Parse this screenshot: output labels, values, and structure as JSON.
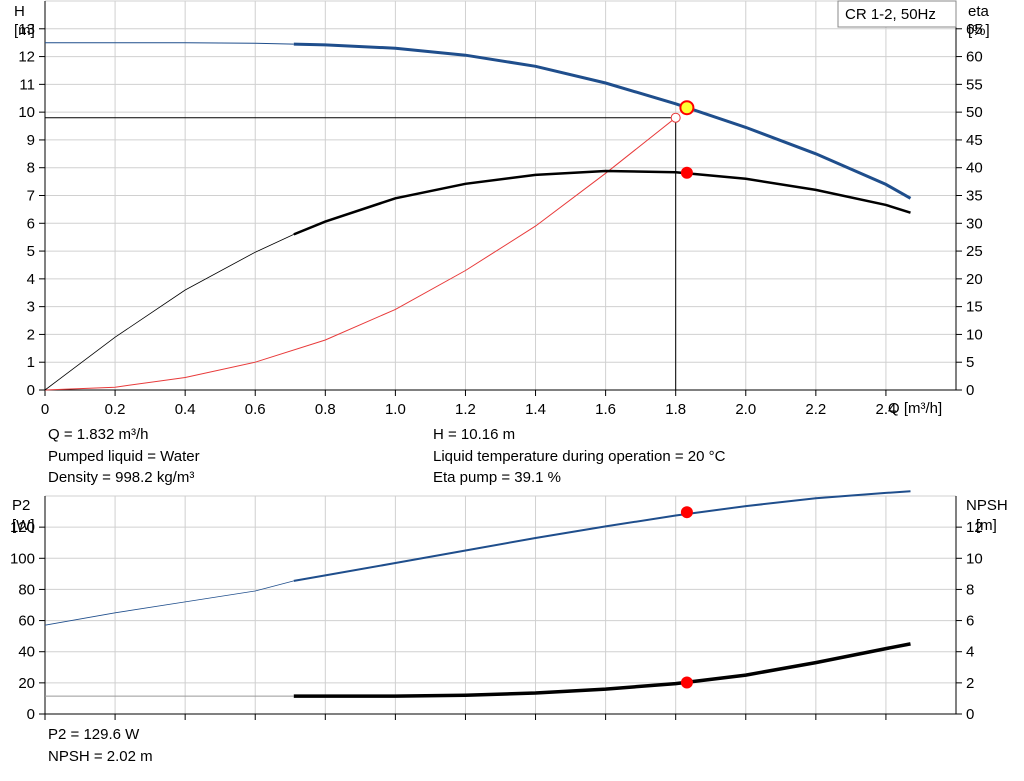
{
  "chart_data": [
    {
      "type": "line",
      "title": "CR 1-2, 50Hz",
      "x": {
        "label": "Q [m³/h]",
        "range": [
          0,
          2.6
        ],
        "ticks": [
          0,
          0.2,
          0.4,
          0.6,
          0.8,
          1.0,
          1.2,
          1.4,
          1.6,
          1.8,
          2.0,
          2.2,
          2.4
        ],
        "tick_labels": [
          "0",
          "0.2",
          "0.4",
          "0.6",
          "0.8",
          "1.0",
          "1.2",
          "1.4",
          "1.6",
          "1.8",
          "2.0",
          "2.2",
          "2.4"
        ]
      },
      "y_left": {
        "label_line1": "H",
        "label_line2": "[m]",
        "range": [
          0,
          14
        ],
        "ticks": [
          0,
          1,
          2,
          3,
          4,
          5,
          6,
          7,
          8,
          9,
          10,
          11,
          12,
          13
        ]
      },
      "y_right": {
        "label_line1": "eta",
        "label_line2": "[%]",
        "range": [
          0,
          70
        ],
        "ticks": [
          0,
          5,
          10,
          15,
          20,
          25,
          30,
          35,
          40,
          45,
          50,
          55,
          60,
          65
        ]
      },
      "grid": true,
      "series": [
        {
          "axis": "left",
          "color": "#1f4e8c",
          "x": [
            0,
            0.2,
            0.4,
            0.6,
            0.71,
            0.8,
            1.0,
            1.2,
            1.4,
            1.6,
            1.8,
            2.0,
            2.2,
            2.4,
            2.47
          ],
          "y": [
            12.5,
            12.5,
            12.5,
            12.48,
            12.45,
            12.42,
            12.3,
            12.05,
            11.65,
            11.05,
            10.3,
            9.45,
            8.5,
            7.4,
            6.9
          ]
        },
        {
          "axis": "right",
          "color": "#000000",
          "x": [
            0,
            0.2,
            0.4,
            0.6,
            0.71,
            0.8,
            1.0,
            1.2,
            1.4,
            1.6,
            1.8,
            2.0,
            2.2,
            2.4,
            2.47
          ],
          "y": [
            0,
            9.5,
            18,
            24.8,
            28.0,
            30.3,
            34.5,
            37.1,
            38.7,
            39.4,
            39.2,
            38.0,
            36.0,
            33.3,
            31.9
          ]
        },
        {
          "axis": "left",
          "color": "#e83a3a",
          "x": [
            0,
            0.2,
            0.4,
            0.6,
            0.8,
            1.0,
            1.2,
            1.4,
            1.6,
            1.8
          ],
          "y": [
            0,
            0.1,
            0.45,
            1.0,
            1.8,
            2.9,
            4.3,
            5.9,
            7.8,
            9.8
          ]
        }
      ],
      "operating_point": {
        "q": 1.832,
        "h": 10.16,
        "eta": 39.1
      },
      "system_point": {
        "q": 1.8,
        "h": 9.8
      }
    },
    {
      "type": "line",
      "x": {
        "range": [
          0,
          2.6
        ],
        "ticks": [
          0,
          0.2,
          0.4,
          0.6,
          0.8,
          1.0,
          1.2,
          1.4,
          1.6,
          1.8,
          2.0,
          2.2,
          2.4
        ]
      },
      "y_left": {
        "label_line1": "P2",
        "label_line2": "[W]",
        "range": [
          0,
          140
        ],
        "ticks": [
          0,
          20,
          40,
          60,
          80,
          100,
          120
        ]
      },
      "y_right": {
        "label_line1": "NPSH",
        "label_line2": "[m]",
        "range": [
          0,
          14
        ],
        "ticks": [
          0,
          2,
          4,
          6,
          8,
          10,
          12
        ]
      },
      "grid": true,
      "series": [
        {
          "axis": "left",
          "color": "#1f4e8c",
          "x": [
            0,
            0.2,
            0.4,
            0.6,
            0.71,
            0.8,
            1.0,
            1.2,
            1.4,
            1.6,
            1.8,
            2.0,
            2.2,
            2.4,
            2.47
          ],
          "y": [
            57,
            65,
            72,
            79,
            85.5,
            89,
            97,
            105,
            113,
            120.5,
            127.5,
            133.5,
            138.5,
            142,
            143
          ]
        },
        {
          "axis": "right",
          "color": "#000000",
          "x": [
            0,
            0.2,
            0.4,
            0.6,
            0.71,
            0.8,
            1.0,
            1.2,
            1.4,
            1.6,
            1.8,
            2.0,
            2.2,
            2.4,
            2.47
          ],
          "y": [
            1.15,
            1.15,
            1.15,
            1.15,
            1.15,
            1.15,
            1.15,
            1.2,
            1.35,
            1.6,
            1.95,
            2.5,
            3.3,
            4.2,
            4.5
          ]
        }
      ],
      "operating_point": {
        "q": 1.832,
        "p2": 129.6,
        "npsh": 2.02
      }
    }
  ],
  "info": {
    "q": "Q = 1.832 m³/h",
    "liquid": "Pumped liquid = Water",
    "density": "Density = 998.2 kg/m³",
    "h": "H = 10.16 m",
    "temperature": "Liquid temperature during operation = 20 °C",
    "eta": "Eta pump = 39.1 %",
    "p2": "P2 = 129.6 W",
    "npsh": "NPSH = 2.02 m"
  },
  "colors": {
    "grid": "#d0d0d0",
    "blue": "#1f4e8c",
    "red_marker": "#ff0000",
    "yellow_marker": "#ffff33",
    "system_curve": "#e83a3a"
  }
}
